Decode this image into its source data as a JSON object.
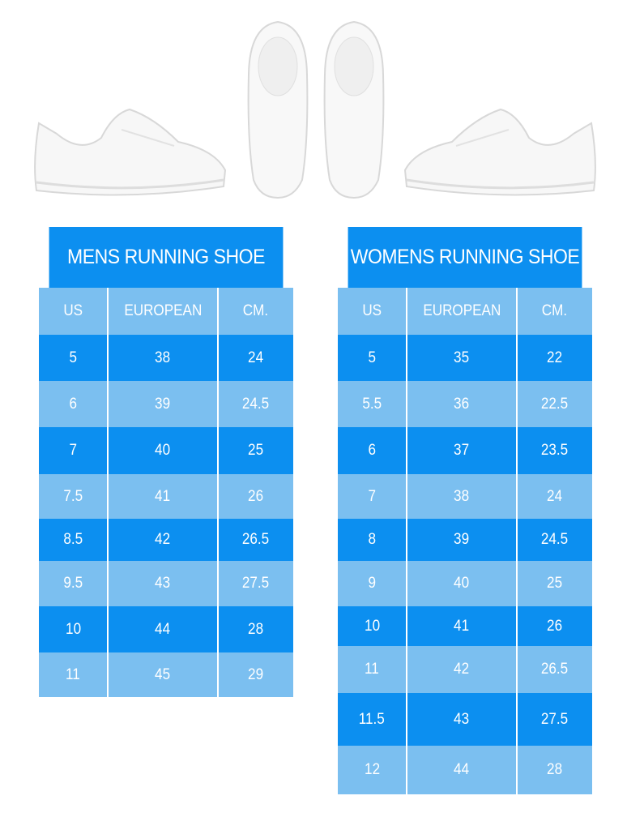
{
  "colors": {
    "dark_row": "#0c8ff0",
    "light_row": "#7bbff0",
    "text": "#ffffff"
  },
  "images": [
    "shoe-side-left",
    "shoe-top-left",
    "shoe-top-right",
    "shoe-side-right"
  ],
  "mens": {
    "title": "MENS RUNNING SHOE",
    "headers": [
      "US",
      "EUROPEAN",
      "CM."
    ],
    "rows": [
      [
        "5",
        "38",
        "24"
      ],
      [
        "6",
        "39",
        "24.5"
      ],
      [
        "7",
        "40",
        "25"
      ],
      [
        "7.5",
        "41",
        "26"
      ],
      [
        "8.5",
        "42",
        "26.5"
      ],
      [
        "9.5",
        "43",
        "27.5"
      ],
      [
        "10",
        "44",
        "28"
      ],
      [
        "11",
        "45",
        "29"
      ]
    ]
  },
  "womens": {
    "title": "WOMENS RUNNING SHOE",
    "headers": [
      "US",
      "EUROPEAN",
      "CM."
    ],
    "rows": [
      [
        "5",
        "35",
        "22"
      ],
      [
        "5.5",
        "36",
        "22.5"
      ],
      [
        "6",
        "37",
        "23.5"
      ],
      [
        "7",
        "38",
        "24"
      ],
      [
        "8",
        "39",
        "24.5"
      ],
      [
        "9",
        "40",
        "25"
      ],
      [
        "10",
        "41",
        "26"
      ],
      [
        "11",
        "42",
        "26.5"
      ],
      [
        "11.5",
        "43",
        "27.5"
      ],
      [
        "12",
        "44",
        "28"
      ]
    ]
  }
}
